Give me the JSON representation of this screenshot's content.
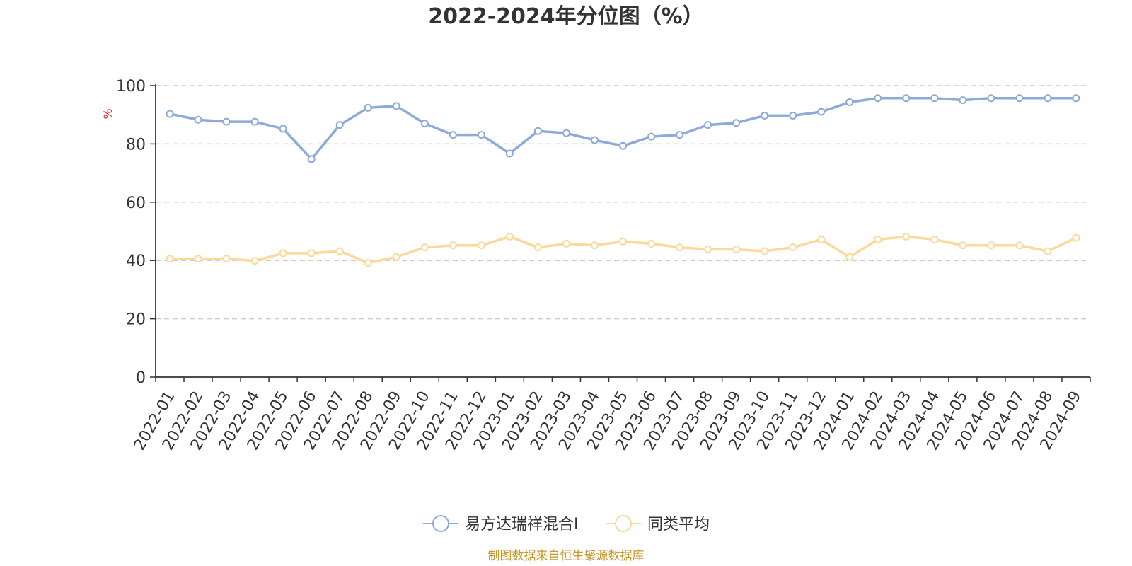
{
  "chart_data": {
    "type": "line",
    "title": "2022-2024年分位图（%）",
    "ylabel": "%",
    "ylim": [
      0,
      100
    ],
    "yticks": [
      0,
      20,
      40,
      60,
      80,
      100
    ],
    "grid": true,
    "legend_position": "bottom",
    "categories": [
      "2022-01",
      "2022-02",
      "2022-03",
      "2022-04",
      "2022-05",
      "2022-06",
      "2022-07",
      "2022-08",
      "2022-09",
      "2022-10",
      "2022-11",
      "2022-12",
      "2023-01",
      "2023-02",
      "2023-03",
      "2023-04",
      "2023-05",
      "2023-06",
      "2023-07",
      "2023-08",
      "2023-09",
      "2023-10",
      "2023-11",
      "2023-12",
      "2024-01",
      "2024-02",
      "2024-03",
      "2024-04",
      "2024-05",
      "2024-06",
      "2024-07",
      "2024-08",
      "2024-09"
    ],
    "series": [
      {
        "name": "易方达瑞祥混合I",
        "color": "#8eaad8",
        "values": [
          90.3,
          88.3,
          87.6,
          87.6,
          85.2,
          74.8,
          86.5,
          92.4,
          93.0,
          87.0,
          83.1,
          83.1,
          76.7,
          84.4,
          83.7,
          81.3,
          79.3,
          82.5,
          83.1,
          86.5,
          87.2,
          89.7,
          89.7,
          91.0,
          94.3,
          95.7,
          95.7,
          95.7,
          95.0,
          95.7,
          95.7,
          95.7,
          95.7
        ]
      },
      {
        "name": "同类平均",
        "color": "#fbd99a",
        "values": [
          40.6,
          40.6,
          40.6,
          39.9,
          42.5,
          42.5,
          43.2,
          39.2,
          41.2,
          44.5,
          45.2,
          45.2,
          48.2,
          44.5,
          45.8,
          45.2,
          46.5,
          45.8,
          44.5,
          43.8,
          43.8,
          43.2,
          44.5,
          47.2,
          41.2,
          47.2,
          48.2,
          47.2,
          45.2,
          45.2,
          45.2,
          43.2,
          47.8
        ]
      }
    ]
  },
  "footer": {
    "source": "制图数据来自恒生聚源数据库"
  }
}
